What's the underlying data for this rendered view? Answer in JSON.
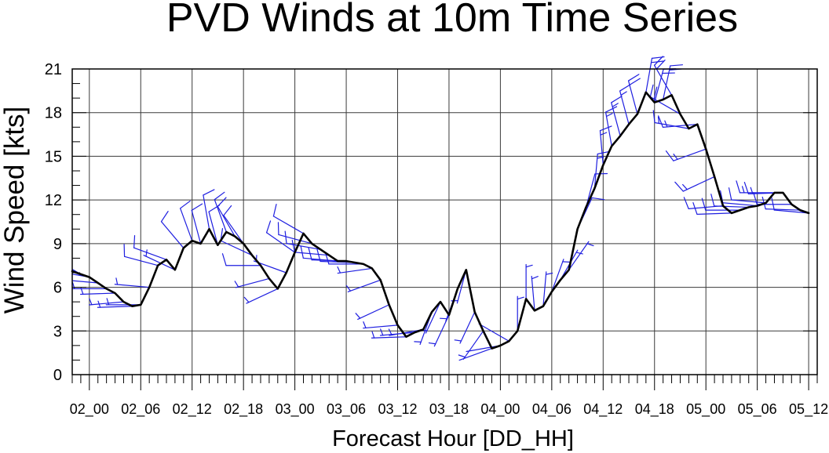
{
  "chart_data": {
    "type": "line",
    "title": "PVD Winds at 10m Time Series",
    "xlabel": "Forecast Hour [DD_HH]",
    "ylabel": "Wind Speed [kts]",
    "xlim": [
      "01_22",
      "05_13"
    ],
    "ylim": [
      0,
      21
    ],
    "grid": true,
    "x_ticks": [
      "02_00",
      "02_06",
      "02_12",
      "02_18",
      "03_00",
      "03_06",
      "03_12",
      "03_18",
      "04_00",
      "04_06",
      "04_12",
      "04_18",
      "05_00",
      "05_06",
      "05_12"
    ],
    "y_ticks": [
      0,
      3,
      6,
      9,
      12,
      15,
      18,
      21
    ],
    "x": [
      "01_22",
      "01_23",
      "02_00",
      "02_01",
      "02_02",
      "02_03",
      "02_04",
      "02_05",
      "02_06",
      "02_07",
      "02_08",
      "02_09",
      "02_10",
      "02_11",
      "02_12",
      "02_13",
      "02_14",
      "02_15",
      "02_16",
      "02_17",
      "02_18",
      "02_19",
      "02_20",
      "02_21",
      "02_22",
      "02_23",
      "03_00",
      "03_01",
      "03_02",
      "03_03",
      "03_04",
      "03_05",
      "03_06",
      "03_07",
      "03_08",
      "03_09",
      "03_10",
      "03_11",
      "03_12",
      "03_13",
      "03_14",
      "03_15",
      "03_16",
      "03_17",
      "03_18",
      "03_19",
      "03_20",
      "03_21",
      "03_22",
      "03_23",
      "04_00",
      "04_01",
      "04_02",
      "04_03",
      "04_04",
      "04_05",
      "04_06",
      "04_07",
      "04_08",
      "04_09",
      "04_10",
      "04_11",
      "04_12",
      "04_13",
      "04_14",
      "04_15",
      "04_16",
      "04_17",
      "04_18",
      "04_19",
      "04_20",
      "04_21",
      "04_22",
      "04_23",
      "05_00",
      "05_01",
      "05_02",
      "05_03",
      "05_04",
      "05_05",
      "05_06",
      "05_07",
      "05_08",
      "05_09",
      "05_10",
      "05_11",
      "05_12"
    ],
    "series": [
      {
        "values": [
          7.1,
          6.9,
          6.7,
          6.3,
          5.9,
          5.6,
          5.0,
          4.7,
          4.8,
          6.0,
          7.5,
          7.9,
          7.2,
          8.7,
          9.2,
          9.0,
          10.0,
          8.9,
          9.8,
          9.5,
          9.0,
          8.2,
          7.5,
          6.6,
          5.9,
          7.0,
          8.4,
          9.7,
          9.0,
          8.6,
          8.2,
          7.8,
          7.8,
          7.7,
          7.6,
          7.3,
          6.5,
          4.8,
          3.4,
          2.6,
          2.9,
          3.1,
          4.3,
          5.0,
          4.1,
          5.9,
          7.2,
          4.3,
          3.0,
          1.8,
          2.0,
          2.3,
          3.0,
          5.2,
          4.4,
          4.7,
          5.7,
          6.5,
          7.2,
          10.0,
          11.5,
          12.8,
          14.4,
          15.7,
          16.4,
          17.2,
          17.9,
          19.4,
          18.7,
          18.9,
          19.2,
          17.9,
          16.9,
          17.2,
          15.5,
          13.6,
          11.6,
          11.1,
          11.3,
          11.5,
          11.6,
          11.8,
          12.5,
          12.5,
          11.7,
          11.3,
          11.1
        ],
        "wind_direction_deg": [
          315,
          300,
          280,
          275,
          270,
          268,
          265,
          268,
          270,
          275,
          285,
          290,
          295,
          320,
          340,
          345,
          350,
          345,
          340,
          330,
          325,
          295,
          270,
          255,
          245,
          290,
          305,
          300,
          285,
          280,
          275,
          275,
          272,
          272,
          270,
          262,
          250,
          245,
          265,
          268,
          265,
          260,
          200,
          205,
          205,
          200,
          195,
          205,
          215,
          250,
          260,
          300,
          0,
          0,
          355,
          5,
          20,
          30,
          35,
          25,
          15,
          5,
          355,
          350,
          345,
          345,
          345,
          10,
          15,
          12,
          330,
          300,
          280,
          265,
          250,
          245,
          265,
          268,
          270,
          272,
          275,
          275,
          270,
          268,
          270,
          272,
          275
        ],
        "line_color": "#000000",
        "barb_color": "#1f1fe0"
      }
    ]
  }
}
